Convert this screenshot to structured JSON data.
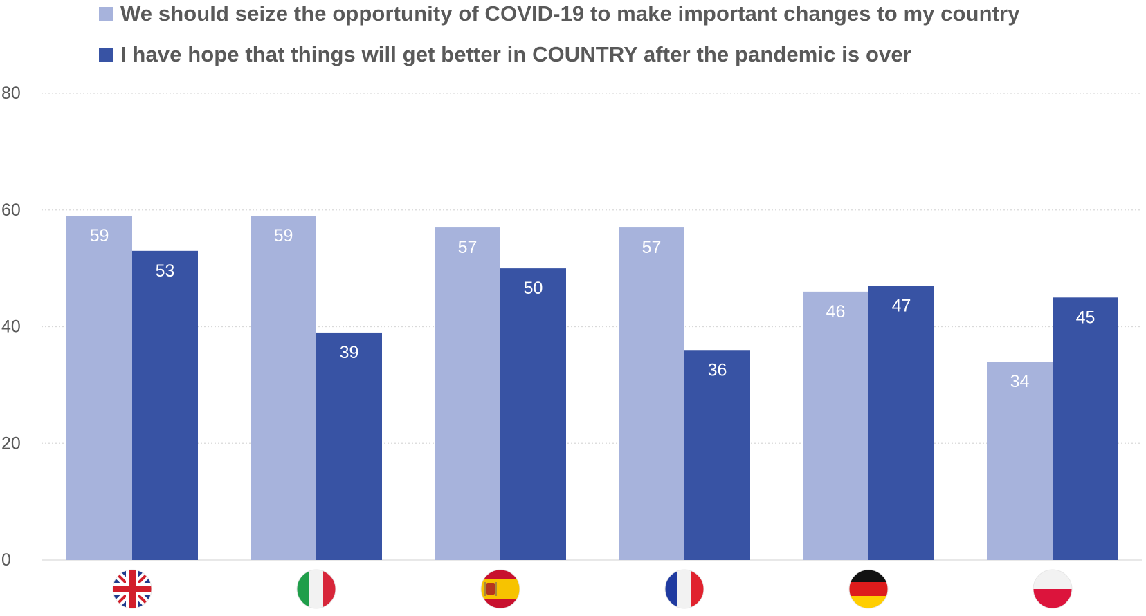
{
  "chart_data": {
    "type": "bar",
    "title": "",
    "xlabel": "",
    "ylabel": "",
    "ylim": [
      0,
      80
    ],
    "yticks": [
      0,
      20,
      40,
      60,
      80
    ],
    "grid": true,
    "legend_position": "top-left",
    "categories": [
      "United Kingdom",
      "Italy",
      "Spain",
      "France",
      "Germany",
      "Poland"
    ],
    "category_icons": [
      "uk-flag-icon",
      "italy-flag-icon",
      "spain-flag-icon",
      "france-flag-icon",
      "germany-flag-icon",
      "poland-flag-icon"
    ],
    "series": [
      {
        "name": "We should seize the opportunity of COVID-19 to make important changes to my country",
        "color": "#a7b3dc",
        "values": [
          59,
          59,
          57,
          57,
          46,
          34
        ]
      },
      {
        "name": "I have hope that things will get better in COUNTRY after the pandemic is over",
        "color": "#3853a4",
        "values": [
          53,
          39,
          50,
          36,
          47,
          45
        ]
      }
    ]
  }
}
